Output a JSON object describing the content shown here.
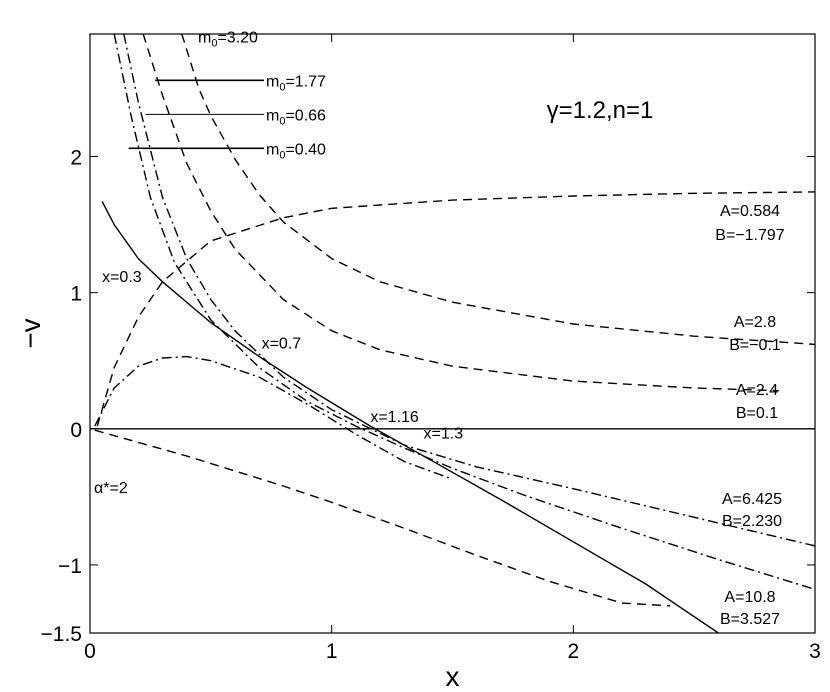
{
  "chart_data": {
    "type": "line",
    "title": "γ=1.2,n=1",
    "xlabel": "x",
    "ylabel": "−v",
    "xlim": [
      0,
      3
    ],
    "ylim": [
      -1.5,
      2.9
    ],
    "xticks": [
      {
        "v": 0,
        "label": "0"
      },
      {
        "v": 1,
        "label": "1"
      },
      {
        "v": 2,
        "label": "2"
      },
      {
        "v": 3,
        "label": "3"
      }
    ],
    "yticks": [
      {
        "v": -1.5,
        "label": "−1.5"
      },
      {
        "v": -1,
        "label": "−1"
      },
      {
        "v": 0,
        "label": "0"
      },
      {
        "v": 1,
        "label": "1"
      },
      {
        "v": 2,
        "label": "2"
      }
    ],
    "grid": false,
    "series": [
      {
        "label_a": "A=0.584",
        "label_b": "B=−1.797",
        "style": "dashed",
        "x": [
          0.03,
          0.1,
          0.2,
          0.3,
          0.5,
          0.8,
          1.0,
          1.5,
          2.0,
          2.5,
          3.0
        ],
        "y": [
          0.02,
          0.45,
          0.82,
          1.08,
          1.38,
          1.55,
          1.62,
          1.68,
          1.71,
          1.73,
          1.74
        ]
      },
      {
        "label_a": "A=2.8",
        "label_b": "B=−0.1",
        "style": "dashed",
        "x": [
          0.38,
          0.45,
          0.5,
          0.6,
          0.7,
          0.8,
          1.0,
          1.2,
          1.5,
          2.0,
          2.5,
          3.0
        ],
        "y": [
          2.9,
          2.5,
          2.3,
          1.98,
          1.72,
          1.52,
          1.25,
          1.08,
          0.93,
          0.77,
          0.68,
          0.62
        ]
      },
      {
        "label_a": "A=2.4",
        "label_b": "B=0.1",
        "style": "dashed",
        "x": [
          0.22,
          0.3,
          0.4,
          0.5,
          0.6,
          0.8,
          1.0,
          1.2,
          1.5,
          2.0,
          2.5,
          2.85
        ],
        "y": [
          2.9,
          2.45,
          1.95,
          1.6,
          1.32,
          0.95,
          0.72,
          0.58,
          0.46,
          0.35,
          0.3,
          0.28
        ]
      },
      {
        "label_a": "A=6.425",
        "label_b": "B=2.230",
        "style": "dashdot",
        "x": [
          0.14,
          0.2,
          0.3,
          0.4,
          0.5,
          0.6,
          0.8,
          1.0,
          1.3,
          1.6,
          2.0,
          2.5,
          3.0
        ],
        "y": [
          2.9,
          2.4,
          1.7,
          1.25,
          0.95,
          0.72,
          0.38,
          0.14,
          -0.12,
          -0.28,
          -0.44,
          -0.65,
          -0.86
        ]
      },
      {
        "label_a": "A=10.8",
        "label_b": "B=3.527",
        "style": "dashed",
        "x": [
          0.02,
          0.2,
          0.4,
          0.6,
          0.8,
          1.0,
          1.3,
          1.6,
          1.9,
          2.2,
          2.4
        ],
        "y": [
          -0.01,
          -0.1,
          -0.2,
          -0.31,
          -0.42,
          -0.54,
          -0.73,
          -0.93,
          -1.12,
          -1.28,
          -1.3
        ]
      },
      {
        "label_a": "",
        "label_b": "",
        "style": "dashdot",
        "x": [
          0.1,
          0.17,
          0.25,
          0.35,
          0.5,
          0.7,
          0.9,
          1.1,
          1.3,
          1.5,
          1.8,
          2.2,
          2.6,
          3.0
        ],
        "y": [
          2.9,
          2.3,
          1.7,
          1.22,
          0.8,
          0.45,
          0.2,
          0.02,
          -0.14,
          -0.29,
          -0.49,
          -0.73,
          -0.96,
          -1.18
        ]
      },
      {
        "label_a": "",
        "label_b": "",
        "style": "dashdot",
        "x": [
          0.02,
          0.1,
          0.2,
          0.3,
          0.4,
          0.5,
          0.7,
          0.9,
          1.1,
          1.3,
          1.5
        ],
        "y": [
          0.02,
          0.3,
          0.46,
          0.52,
          0.53,
          0.5,
          0.38,
          0.18,
          -0.04,
          -0.24,
          -0.37
        ]
      },
      {
        "label_a": "",
        "label_b": "",
        "style": "solid",
        "x": [
          0.05,
          0.1,
          0.2,
          0.3,
          0.5,
          0.7,
          0.9,
          1.16,
          1.4,
          1.7,
          2.0,
          2.3,
          2.6
        ],
        "y": [
          1.67,
          1.5,
          1.25,
          1.08,
          0.78,
          0.53,
          0.3,
          0.02,
          -0.22,
          -0.52,
          -0.83,
          -1.14,
          -1.5
        ]
      },
      {
        "label_a": "",
        "label_b": "",
        "style": "solid",
        "x": [
          0.0,
          3.0
        ],
        "y": [
          0.0,
          0.0
        ]
      }
    ],
    "mass_labels": [
      {
        "text": "m₀=3.20",
        "y": 2.88,
        "x1": 0.0,
        "x2": 0.0
      },
      {
        "text": "m₀=1.77",
        "y": 2.56,
        "x1": 0.27,
        "x2": 0.72
      },
      {
        "text": "m₀=0.66",
        "y": 2.31,
        "x1": 0.23,
        "x2": 0.72
      },
      {
        "text": "m₀=0.40",
        "y": 2.06,
        "x1": 0.16,
        "x2": 0.72
      }
    ],
    "point_labels": [
      {
        "text": "x=0.3",
        "x": 0.05,
        "y": 1.05
      },
      {
        "text": "x=0.7",
        "x": 0.71,
        "y": 0.56
      },
      {
        "text": "x=1.16",
        "x": 1.16,
        "y": 0.02
      },
      {
        "text": "x=1.3",
        "x": 1.38,
        "y": -0.1
      }
    ],
    "alpha_label": "α*=2"
  }
}
